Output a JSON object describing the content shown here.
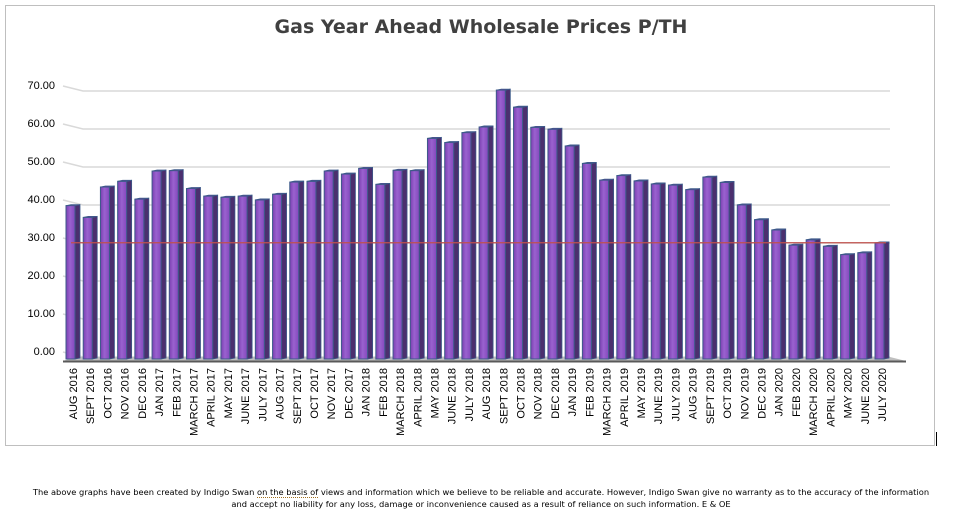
{
  "chart_data": {
    "type": "bar",
    "style": "3d-clustered-column",
    "title": "Gas Year Ahead Wholesale Prices P/TH",
    "xlabel": "",
    "ylabel": "",
    "ylim": [
      0,
      70
    ],
    "yticks": [
      "0.00",
      "10.00",
      "20.00",
      "30.00",
      "40.00",
      "50.00",
      "60.00",
      "70.00"
    ],
    "grid": true,
    "legend": "none",
    "reference_line": {
      "value": 29.8,
      "color": "#c0504d"
    },
    "bar_color": "#8b4fc2",
    "categories": [
      "AUG 2016",
      "SEPT 2016",
      "OCT 2016",
      "NOV 2016",
      "DEC 2016",
      "JAN 2017",
      "FEB 2017",
      "MARCH 2017",
      "APRIL 2017",
      "MAY 2017",
      "JUNE 2017",
      "JULY 2017",
      "AUG 2017",
      "SEPT 2017",
      "OCT 2017",
      "NOV 2017",
      "DEC 2017",
      "JAN 2018",
      "FEB 2018",
      "MARCH 2018",
      "APRIL 2018",
      "MAY 2018",
      "JUNE 2018",
      "JULY 2018",
      "AUG 2018",
      "SEPT 2018",
      "OCT 2018",
      "NOV 2018",
      "DEC 2018",
      "JAN 2019",
      "FEB 2019",
      "MARCH 2019",
      "APRIL 2019",
      "MAY 2019",
      "JUNE 2019",
      "JULY 2019",
      "AUG 2019",
      "SEPT 2019",
      "OCT 2019",
      "NOV 2019",
      "DEC 2019",
      "JAN 2020",
      "FEB 2020",
      "MARCH 2020",
      "APRIL 2020",
      "MAY 2020",
      "JUNE 2020",
      "JULY 2020"
    ],
    "values": [
      40.1,
      37.0,
      45.0,
      46.5,
      41.8,
      49.2,
      49.3,
      44.6,
      42.6,
      42.3,
      42.6,
      41.6,
      43.1,
      46.3,
      46.5,
      49.2,
      48.4,
      49.9,
      45.7,
      49.4,
      49.3,
      57.8,
      56.7,
      59.3,
      60.8,
      70.5,
      66.0,
      60.7,
      60.2,
      55.8,
      51.2,
      46.8,
      48.0,
      46.6,
      45.8,
      45.5,
      44.3,
      47.6,
      46.2,
      40.3,
      36.4,
      33.7,
      29.7,
      31.1,
      29.4,
      27.2,
      27.7,
      30.3
    ]
  },
  "footer": {
    "line1_pre": "The above graphs have been created by Indigo Swan ",
    "line1_underlined": "on the basis of",
    "line1_post": " views and information which we believe to be reliable and accurate. However, Indigo Swan give no warranty as to the accuracy of the information",
    "line2": "and accept no liability for any loss, damage or inconvenience caused as a result of reliance on such information. E & OE"
  }
}
